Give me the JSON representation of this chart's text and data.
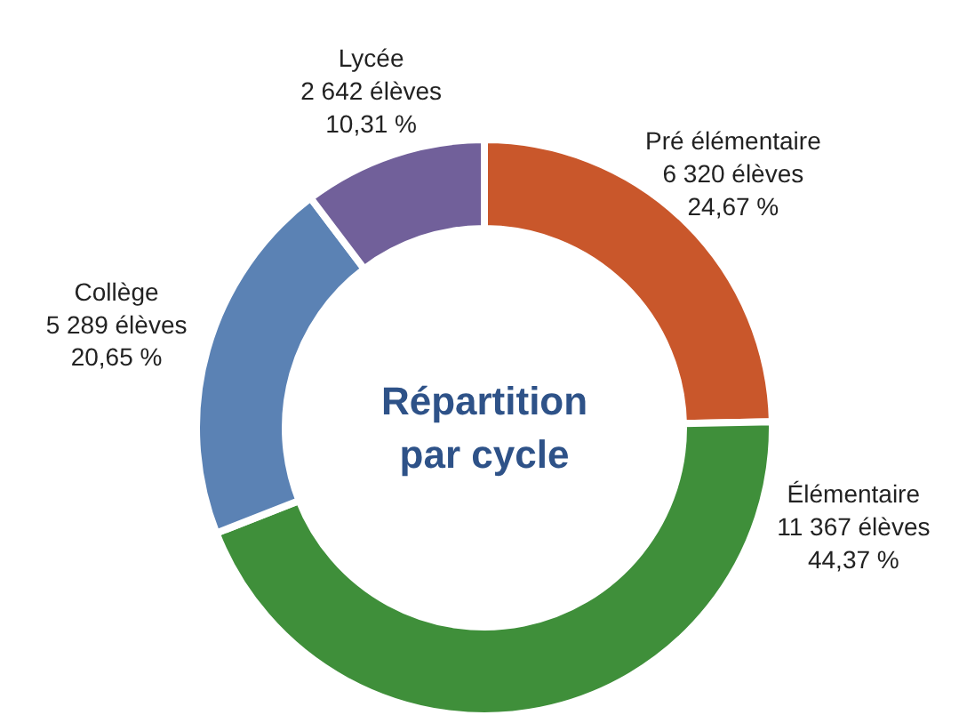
{
  "chart_data": {
    "type": "donut",
    "title": "Répartition par cycle",
    "categories": [
      "Pré élémentaire",
      "Élémentaire",
      "Collège",
      "Lycée"
    ],
    "values": [
      6320,
      11367,
      5289,
      2642
    ],
    "colors": [
      "#c9572b",
      "#3f8f3a",
      "#5b82b4",
      "#71609a"
    ],
    "value_labels": [
      "6 320 élèves\n24,67 %",
      "11 367 élèves\n44,37 %",
      "5 289 élèves\n20,65 %",
      "2 642 élèves\n10,31 %"
    ]
  }
}
